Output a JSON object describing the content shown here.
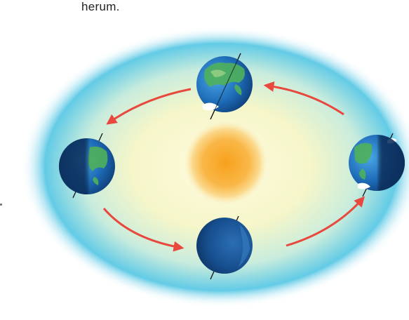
{
  "caption": {
    "text": "herum."
  },
  "diagram": {
    "background_colors": {
      "outer": "#2bb7e0",
      "inner": "#fbf8d0"
    },
    "sun": {
      "color": "#f7a21d"
    },
    "arrow_color": "#e8483d",
    "earths": [
      {
        "name": "earth-top",
        "visible_land": "north-polar"
      },
      {
        "name": "earth-left",
        "visible_land": "half-lit"
      },
      {
        "name": "earth-bottom",
        "visible_land": "dark"
      },
      {
        "name": "earth-right",
        "visible_land": "half-lit"
      }
    ]
  }
}
